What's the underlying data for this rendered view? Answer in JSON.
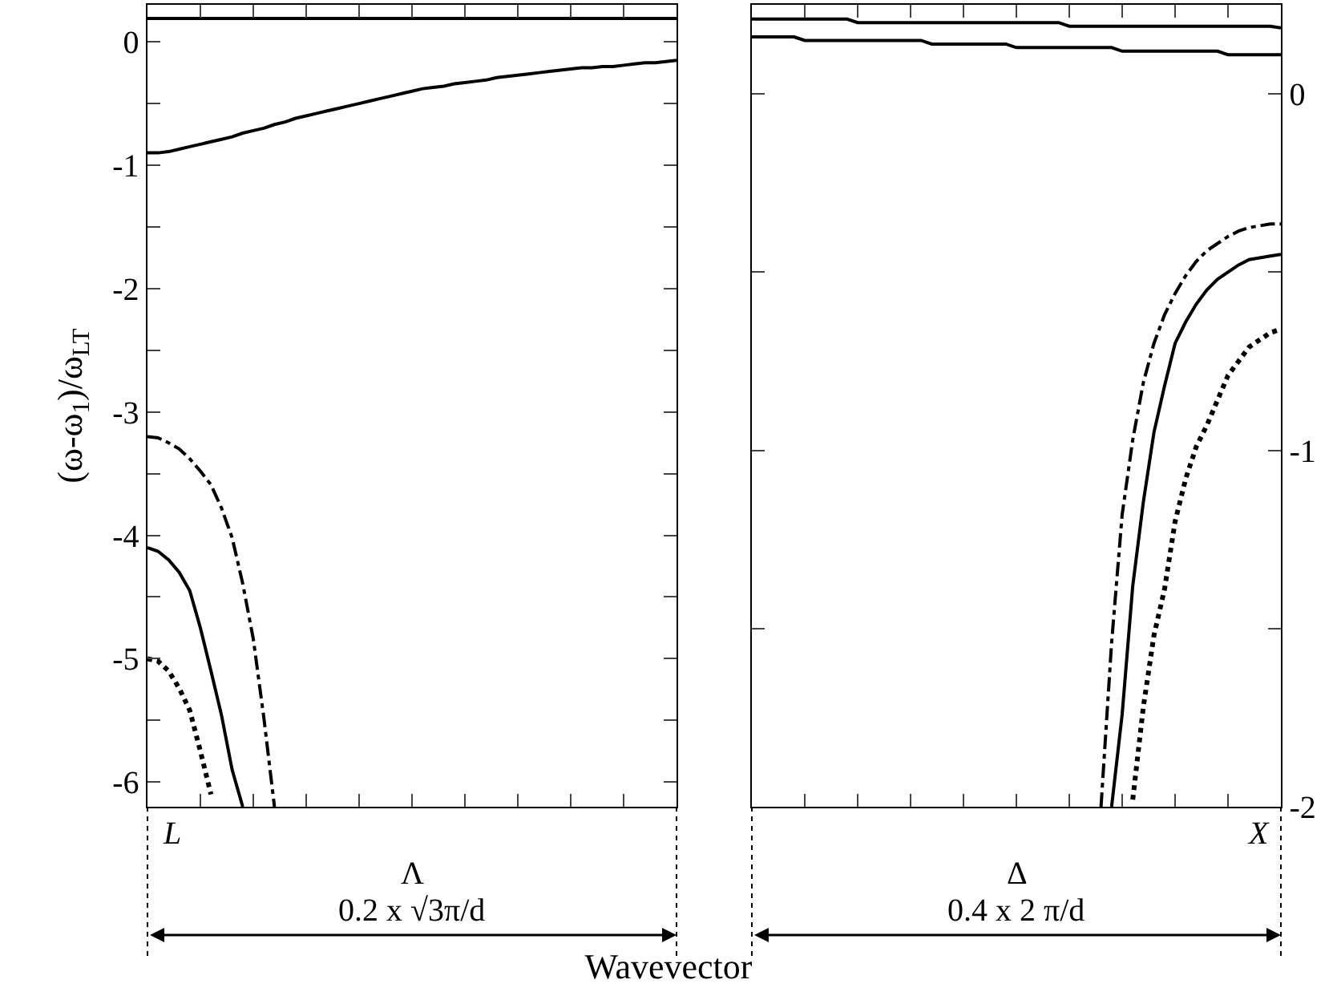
{
  "chart_data": [
    {
      "type": "line",
      "xlabel": "Wavevector",
      "ylabel": "(ω-ω$_{1}$)/ω$_{LT}$",
      "ylim": [
        -6.2,
        0.3
      ],
      "categories": [
        null,
        null,
        null,
        null,
        null,
        null,
        null,
        null,
        null,
        null,
        null,
        null,
        null,
        null,
        null,
        null,
        null,
        null,
        null,
        null,
        null,
        null,
        null,
        null,
        null,
        null,
        null,
        null,
        null,
        null,
        null,
        null,
        null,
        null,
        null,
        null,
        null,
        null,
        null,
        null,
        null,
        null,
        null,
        null,
        null,
        null,
        null,
        null,
        null,
        null,
        null
      ],
      "yticks": [
        -6,
        {
          "value": -5.5,
          "label": null
        },
        -5,
        {
          "value": -4.5,
          "label": null
        },
        -4,
        {
          "value": -3.5,
          "label": null
        },
        -3,
        {
          "value": -2.5,
          "label": null
        },
        -2,
        {
          "value": -1.5,
          "label": null
        },
        -1,
        {
          "value": -0.5,
          "label": null
        },
        0
      ],
      "tick_labels": "y",
      "annotations": [
        "L",
        "Λ",
        "0.2 x √3π/d"
      ],
      "series": [
        {
          "color": "#000000",
          "line_style": "solid",
          "values": [
            0.19,
            0.19,
            0.19,
            0.19,
            0.19,
            0.19,
            0.19,
            0.19,
            0.19,
            0.19,
            0.19,
            0.19,
            0.19,
            0.19,
            0.19,
            0.19,
            0.19,
            0.19,
            0.19,
            0.19,
            0.19,
            0.19,
            0.19,
            0.19,
            0.19,
            0.19,
            0.19,
            0.19,
            0.19,
            0.19,
            0.19,
            0.19,
            0.19,
            0.19,
            0.19,
            0.19,
            0.19,
            0.19,
            0.19,
            0.19,
            0.19,
            0.19,
            0.19,
            0.19,
            0.19,
            0.19,
            0.19,
            0.19,
            0.19,
            0.19,
            0.19
          ]
        },
        {
          "color": "#000000",
          "line_style": "solid",
          "values": [
            -0.9,
            -0.9,
            -0.89,
            -0.87,
            -0.85,
            -0.83,
            -0.81,
            -0.79,
            -0.77,
            -0.74,
            -0.72,
            -0.7,
            -0.67,
            -0.65,
            -0.62,
            -0.6,
            -0.58,
            -0.56,
            -0.54,
            -0.52,
            -0.5,
            -0.48,
            -0.46,
            -0.44,
            -0.42,
            -0.4,
            -0.38,
            -0.37,
            -0.36,
            -0.34,
            -0.33,
            -0.32,
            -0.31,
            -0.29,
            -0.28,
            -0.27,
            -0.26,
            -0.25,
            -0.24,
            -0.23,
            -0.22,
            -0.21,
            -0.21,
            -0.2,
            -0.2,
            -0.19,
            -0.18,
            -0.17,
            -0.17,
            -0.16,
            -0.15
          ]
        },
        {
          "color": "#000000",
          "line_style": "dashdot",
          "values": [
            -3.2,
            -3.21,
            -3.25,
            -3.3,
            -3.38,
            -3.48,
            -3.59,
            -3.78,
            -4.02,
            -4.39,
            -4.84,
            -5.48,
            -6.2,
            null,
            null,
            null,
            null,
            null,
            null,
            null,
            null,
            null,
            null,
            null,
            null,
            null,
            null,
            null,
            null,
            null,
            null,
            null,
            null,
            null,
            null,
            null,
            null,
            null,
            null,
            null,
            null,
            null,
            null,
            null,
            null,
            null,
            null,
            null,
            null,
            null,
            null
          ]
        },
        {
          "color": "#000000",
          "line_style": "solid",
          "values": [
            -4.1,
            -4.13,
            -4.2,
            -4.3,
            -4.45,
            -4.75,
            -5.1,
            -5.46,
            -5.9,
            -6.2,
            null,
            null,
            null,
            null,
            null,
            null,
            null,
            null,
            null,
            null,
            null,
            null,
            null,
            null,
            null,
            null,
            null,
            null,
            null,
            null,
            null,
            null,
            null,
            null,
            null,
            null,
            null,
            null,
            null,
            null,
            null,
            null,
            null,
            null,
            null,
            null,
            null,
            null,
            null,
            null,
            null
          ]
        },
        {
          "color": "#000000",
          "line_style": "dotted",
          "values": [
            -5,
            -5.02,
            -5.1,
            -5.24,
            -5.42,
            -5.75,
            -6.1,
            null,
            null,
            null,
            null,
            null,
            null,
            null,
            null,
            null,
            null,
            null,
            null,
            null,
            null,
            null,
            null,
            null,
            null,
            null,
            null,
            null,
            null,
            null,
            null,
            null,
            null,
            null,
            null,
            null,
            null,
            null,
            null,
            null,
            null,
            null,
            null,
            null,
            null,
            null,
            null,
            null,
            null,
            null,
            null
          ]
        }
      ]
    },
    {
      "type": "line",
      "ylim": [
        -2,
        0.25
      ],
      "categories": [
        null,
        null,
        null,
        null,
        null,
        null,
        null,
        null,
        null,
        null,
        null,
        null,
        null,
        null,
        null,
        null,
        null,
        null,
        null,
        null,
        null,
        null,
        null,
        null,
        null,
        null,
        null,
        null,
        null,
        null,
        null,
        null,
        null,
        null,
        null,
        null,
        null,
        null,
        null,
        null,
        null,
        null,
        null,
        null,
        null,
        null,
        null,
        null,
        null,
        null,
        null
      ],
      "yticks": [
        -2,
        {
          "value": -1.5,
          "label": null
        },
        -1,
        {
          "value": -0.5,
          "label": null
        },
        0
      ],
      "tick_labels": "y",
      "annotations": [
        "Δ",
        "X",
        "0.4 x 2 π/d"
      ],
      "series": [
        {
          "color": "#000000",
          "line_style": "solid",
          "values": [
            0.21,
            0.21,
            0.21,
            0.21,
            0.21,
            0.21,
            0.21,
            0.21,
            0.21,
            0.21,
            0.2,
            0.2,
            0.2,
            0.2,
            0.2,
            0.2,
            0.2,
            0.2,
            0.2,
            0.2,
            0.2,
            0.2,
            0.2,
            0.2,
            0.2,
            0.2,
            0.2,
            0.2,
            0.2,
            0.2,
            0.19,
            0.19,
            0.19,
            0.19,
            0.19,
            0.19,
            0.19,
            0.19,
            0.19,
            0.19,
            0.19,
            0.19,
            0.19,
            0.19,
            0.19,
            0.19,
            0.19,
            0.19,
            0.19,
            0.19,
            0.185
          ]
        },
        {
          "color": "#000000",
          "line_style": "solid",
          "values": [
            0.16,
            0.16,
            0.16,
            0.16,
            0.16,
            0.15,
            0.15,
            0.15,
            0.15,
            0.15,
            0.15,
            0.15,
            0.15,
            0.15,
            0.15,
            0.15,
            0.15,
            0.14,
            0.14,
            0.14,
            0.14,
            0.14,
            0.14,
            0.14,
            0.14,
            0.13,
            0.13,
            0.13,
            0.13,
            0.13,
            0.13,
            0.13,
            0.13,
            0.13,
            0.13,
            0.12,
            0.12,
            0.12,
            0.12,
            0.12,
            0.12,
            0.12,
            0.12,
            0.12,
            0.12,
            0.11,
            0.11,
            0.11,
            0.11,
            0.11,
            0.11
          ]
        },
        {
          "color": "#000000",
          "line_style": "dashdot",
          "values": [
            null,
            null,
            null,
            null,
            null,
            null,
            null,
            null,
            null,
            null,
            null,
            null,
            null,
            null,
            null,
            null,
            null,
            null,
            null,
            null,
            null,
            null,
            null,
            null,
            null,
            null,
            null,
            null,
            null,
            null,
            null,
            null,
            null,
            -2,
            -1.54,
            -1.18,
            -0.97,
            -0.81,
            -0.7,
            -0.62,
            -0.56,
            -0.51,
            -0.47,
            -0.44,
            -0.42,
            -0.4,
            -0.385,
            -0.375,
            -0.37,
            -0.365,
            -0.365
          ]
        },
        {
          "color": "#000000",
          "line_style": "solid",
          "values": [
            null,
            null,
            null,
            null,
            null,
            null,
            null,
            null,
            null,
            null,
            null,
            null,
            null,
            null,
            null,
            null,
            null,
            null,
            null,
            null,
            null,
            null,
            null,
            null,
            null,
            null,
            null,
            null,
            null,
            null,
            null,
            null,
            null,
            null,
            -2,
            -1.74,
            -1.38,
            -1.145,
            -0.95,
            -0.82,
            -0.7,
            -0.64,
            -0.59,
            -0.55,
            -0.52,
            -0.5,
            -0.48,
            -0.465,
            -0.46,
            -0.455,
            -0.45
          ]
        },
        {
          "color": "#000000",
          "line_style": "dotted",
          "values": [
            null,
            null,
            null,
            null,
            null,
            null,
            null,
            null,
            null,
            null,
            null,
            null,
            null,
            null,
            null,
            null,
            null,
            null,
            null,
            null,
            null,
            null,
            null,
            null,
            null,
            null,
            null,
            null,
            null,
            null,
            null,
            null,
            null,
            null,
            null,
            null,
            -1.98,
            -1.72,
            -1.52,
            -1.39,
            -1.2,
            -1.08,
            -0.99,
            -0.93,
            -0.86,
            -0.79,
            -0.75,
            -0.71,
            -0.69,
            -0.67,
            -0.66
          ]
        }
      ]
    }
  ]
}
